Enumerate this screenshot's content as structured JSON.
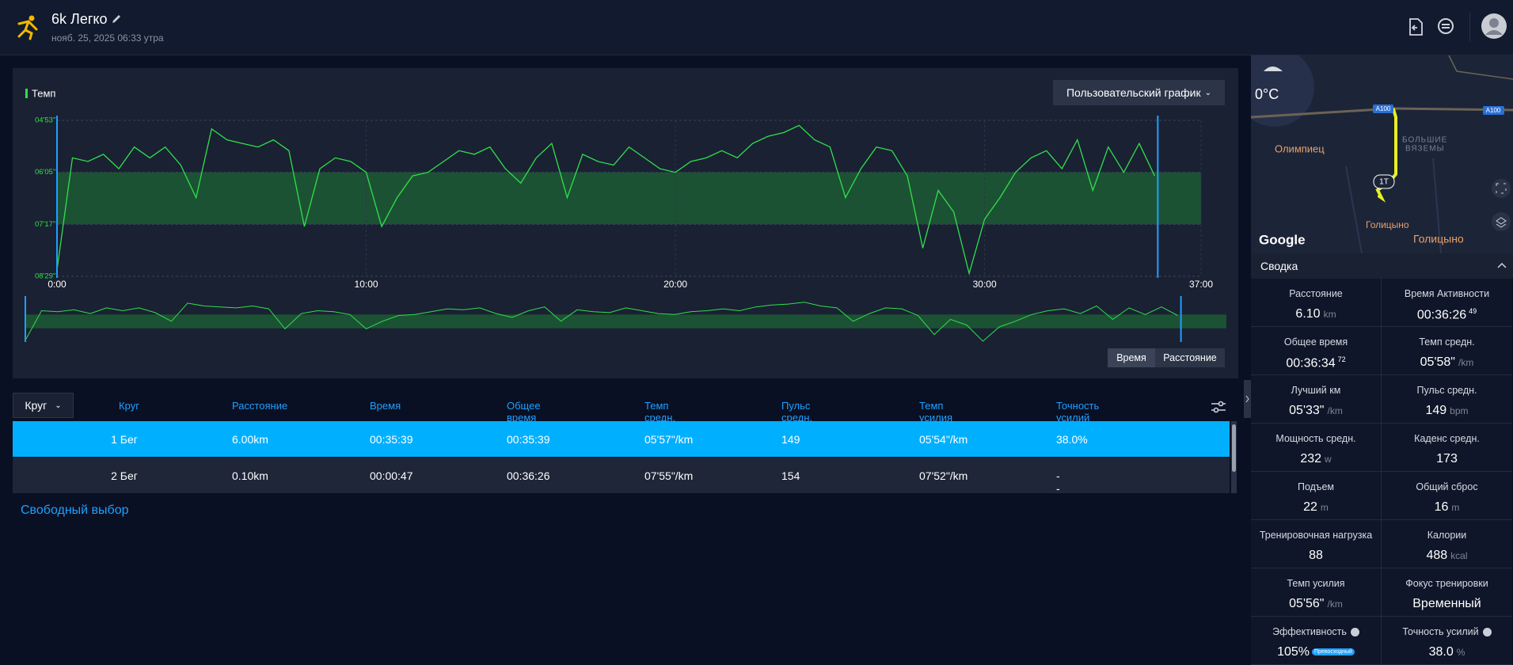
{
  "header": {
    "title": "6k Легко",
    "date": "нояб. 25, 2025 06:33 утра"
  },
  "chart_controls": {
    "dropdown": "Пользовательский график",
    "axis_buttons": [
      "Время",
      "Расстояние"
    ]
  },
  "pace_chart": {
    "type": "line",
    "legend": "Темп",
    "color": "#2fe04a",
    "zone": [
      365,
      437
    ],
    "zone_color": "#1d5a35",
    "selection": [
      0,
      35.6
    ],
    "selection_color": "#1ea0ff",
    "grid": true,
    "xlim": [
      0,
      37
    ],
    "ylim": [
      509,
      293
    ],
    "xticks": [
      {
        "value": 0,
        "label": "0:00"
      },
      {
        "value": 10,
        "label": "10:00"
      },
      {
        "value": 20,
        "label": "20:00"
      },
      {
        "value": 30,
        "label": "30:00"
      },
      {
        "value": 37,
        "label": "37:00"
      }
    ],
    "yticks": [
      {
        "value": 293,
        "label": "04'53\""
      },
      {
        "value": 365,
        "label": "06'05\""
      },
      {
        "value": 437,
        "label": "07'17\""
      },
      {
        "value": 509,
        "label": "08'29\""
      }
    ],
    "x": [
      0,
      0.5,
      1,
      1.5,
      2,
      2.5,
      3,
      3.5,
      4,
      4.5,
      5,
      5.5,
      6,
      6.5,
      7,
      7.5,
      8,
      8.5,
      9,
      9.5,
      10,
      10.5,
      11,
      11.5,
      12,
      12.5,
      13,
      13.5,
      14,
      14.5,
      15,
      15.5,
      16,
      16.5,
      17,
      17.5,
      18,
      18.5,
      19,
      19.5,
      20,
      20.5,
      21,
      21.5,
      22,
      22.5,
      23,
      23.5,
      24,
      24.5,
      25,
      25.5,
      26,
      26.5,
      27,
      27.5,
      28,
      28.5,
      29,
      29.5,
      30,
      30.5,
      31,
      31.5,
      32,
      32.5,
      33,
      33.5,
      34,
      34.5,
      35,
      35.5
    ],
    "values": [
      500,
      345,
      350,
      340,
      360,
      330,
      345,
      330,
      355,
      400,
      305,
      320,
      325,
      330,
      320,
      335,
      440,
      360,
      345,
      350,
      365,
      440,
      400,
      370,
      365,
      350,
      335,
      340,
      330,
      360,
      380,
      345,
      325,
      400,
      340,
      350,
      355,
      330,
      345,
      360,
      365,
      350,
      345,
      335,
      345,
      325,
      315,
      310,
      300,
      320,
      330,
      400,
      360,
      330,
      335,
      370,
      470,
      390,
      420,
      505,
      430,
      400,
      365,
      345,
      335,
      360,
      320,
      390,
      330,
      365,
      325,
      370
    ]
  },
  "laps": {
    "selector": "Круг",
    "columns": [
      "Круг",
      "Расстояние",
      "Время",
      "Общее время",
      "Темп средн.",
      "Пульс средн.",
      "Темп усилия",
      "Точность усилий"
    ],
    "rows": [
      [
        "1 Бег",
        "6.00km",
        "00:35:39",
        "00:35:39",
        "05'57\"/km",
        "149",
        "05'54\"/km",
        "38.0%"
      ],
      [
        "2 Бег",
        "0.10km",
        "00:00:47",
        "00:36:26",
        "07'55\"/km",
        "154",
        "07'52\"/km",
        "--"
      ]
    ],
    "free_select": "Свободный выбор"
  },
  "map": {
    "temperature": "0°C",
    "road_labels": [
      "A100",
      "A100"
    ],
    "place_labels": [
      "Олимпиец",
      "БОЛЬШИЕ",
      "ВЯЗЕМЫ",
      "Голицыно",
      "Голицыно"
    ],
    "marker": "1T",
    "brand": "Google"
  },
  "summary": {
    "title": "Сводка",
    "items": [
      {
        "label": "Расстояние",
        "value": "6.10",
        "unit": "km"
      },
      {
        "label": "Время Активности",
        "value": "00:36:26",
        "sup": "49"
      },
      {
        "label": "Общее время",
        "value": "00:36:34",
        "sup": "72"
      },
      {
        "label": "Темп средн.",
        "value": "05'58\"",
        "unit": "/km"
      },
      {
        "label": "Лучший км",
        "value": "05'33\"",
        "unit": "/km"
      },
      {
        "label": "Пульс средн.",
        "value": "149",
        "unit": "bpm"
      },
      {
        "label": "Мощность средн.",
        "value": "232",
        "unit": "w"
      },
      {
        "label": "Каденс средн.",
        "value": "173"
      },
      {
        "label": "Подъем",
        "value": "22",
        "unit": "m"
      },
      {
        "label": "Общий сброс",
        "value": "16",
        "unit": "m"
      },
      {
        "label": "Тренировочная нагрузка",
        "value": "88"
      },
      {
        "label": "Калории",
        "value": "488",
        "unit": "kcal"
      },
      {
        "label": "Темп усилия",
        "value": "05'56\"",
        "unit": "/km"
      },
      {
        "label": "Фокус тренировки",
        "value": "Временный"
      },
      {
        "label": "Эффективность",
        "value": "105%",
        "badge": "Превосходный"
      },
      {
        "label": "Точность усилий",
        "value": "38.0",
        "unit": "%"
      }
    ]
  }
}
